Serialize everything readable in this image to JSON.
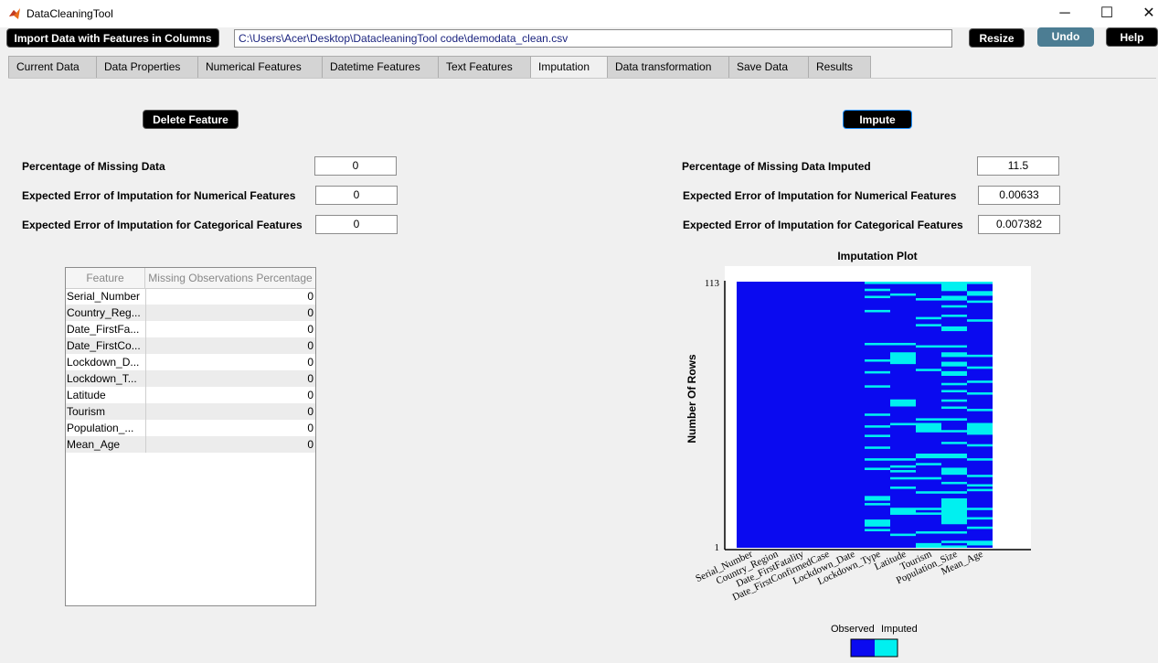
{
  "window": {
    "title": "DataCleaningTool",
    "minimize": "─",
    "maximize": "☐",
    "close": "✕"
  },
  "toolbar": {
    "import_label": "Import Data with Features in Columns",
    "path_value": "C:\\Users\\Acer\\Desktop\\DatacleaningTool code\\demodata_clean.csv",
    "resize_label": "Resize",
    "undo_label": "Undo",
    "help_label": "Help"
  },
  "tabs": [
    "Current Data",
    "Data Properties",
    "Numerical Features",
    "Datetime Features",
    "Text Features",
    "Imputation",
    "Data transformation",
    "Save Data",
    "Results"
  ],
  "active_tab": "Imputation",
  "left": {
    "delete_label": "Delete Feature",
    "missing_label": "Percentage of Missing Data",
    "missing_value": "0",
    "num_err_label": "Expected Error of Imputation for Numerical Features",
    "num_err_value": "0",
    "cat_err_label": "Expected Error of Imputation for Categorical Features",
    "cat_err_value": "0",
    "table": {
      "headers": [
        "Feature",
        "Missing Observations Percentage"
      ],
      "rows": [
        [
          "Serial_Number",
          "0"
        ],
        [
          "Country_Reg...",
          "0"
        ],
        [
          "Date_FirstFa...",
          "0"
        ],
        [
          "Date_FirstCo...",
          "0"
        ],
        [
          "Lockdown_D...",
          "0"
        ],
        [
          "Lockdown_T...",
          "0"
        ],
        [
          "Latitude",
          "0"
        ],
        [
          "Tourism",
          "0"
        ],
        [
          "Population_...",
          "0"
        ],
        [
          "Mean_Age",
          "0"
        ]
      ]
    }
  },
  "right": {
    "impute_label": "Impute",
    "imputed_label": "Percentage of Missing Data Imputed",
    "imputed_value": "11.5",
    "num_err_label": "Expected Error of Imputation for Numerical Features",
    "num_err_value": "0.00633",
    "cat_err_label": "Expected Error of Imputation for Categorical Features",
    "cat_err_value": "0.007382"
  },
  "chart_data": {
    "type": "heatmap",
    "title": "Imputation Plot",
    "ylabel": "Number Of Rows",
    "ylim": [
      1,
      113
    ],
    "ytick_labels": [
      "1",
      "113"
    ],
    "columns": [
      "Serial_Number",
      "Country_Region",
      "Date_FirstFatality",
      "Date_FirstConfirmedCase",
      "Lockdown_Date",
      "Lockdown_Type",
      "Latitude",
      "Tourism",
      "Population_Size",
      "Mean_Age"
    ],
    "colors": {
      "observed": "#0a0af0",
      "imputed": "#00f0f0",
      "background": "#ffffff"
    },
    "legend": [
      "Observed",
      "Imputed"
    ],
    "imputed_ranges": {
      "Serial_Number": [],
      "Country_Region": [],
      "Date_FirstFatality": [],
      "Date_FirstConfirmedCase": [],
      "Lockdown_Date": [],
      "Lockdown_Type": [
        [
          113,
          113
        ],
        [
          110,
          110
        ],
        [
          107,
          107
        ],
        [
          101,
          101
        ],
        [
          87,
          87
        ],
        [
          80,
          80
        ],
        [
          75,
          75
        ],
        [
          69,
          69
        ],
        [
          57,
          57
        ],
        [
          52,
          52
        ],
        [
          48,
          48
        ],
        [
          43,
          43
        ],
        [
          38,
          38
        ],
        [
          34,
          34
        ],
        [
          22,
          21
        ],
        [
          19,
          19
        ],
        [
          12,
          10
        ],
        [
          8,
          8
        ]
      ],
      "Latitude": [
        [
          113,
          113
        ],
        [
          108,
          108
        ],
        [
          87,
          87
        ],
        [
          83,
          79
        ],
        [
          63,
          61
        ],
        [
          53,
          53
        ],
        [
          38,
          38
        ],
        [
          35,
          35
        ],
        [
          33,
          33
        ],
        [
          30,
          30
        ],
        [
          26,
          26
        ],
        [
          17,
          15
        ],
        [
          6,
          6
        ]
      ],
      "Tourism": [
        [
          113,
          113
        ],
        [
          106,
          106
        ],
        [
          98,
          98
        ],
        [
          95,
          95
        ],
        [
          86,
          86
        ],
        [
          76,
          76
        ],
        [
          55,
          55
        ],
        [
          53,
          50
        ],
        [
          40,
          39
        ],
        [
          36,
          36
        ],
        [
          30,
          30
        ],
        [
          24,
          24
        ],
        [
          17,
          17
        ],
        [
          15,
          15
        ],
        [
          7,
          7
        ],
        [
          2,
          1
        ]
      ],
      "Population_Size": [
        [
          113,
          110
        ],
        [
          107,
          106
        ],
        [
          103,
          103
        ],
        [
          99,
          99
        ],
        [
          94,
          93
        ],
        [
          86,
          86
        ],
        [
          83,
          82
        ],
        [
          79,
          78
        ],
        [
          75,
          74
        ],
        [
          70,
          70
        ],
        [
          67,
          67
        ],
        [
          63,
          63
        ],
        [
          60,
          60
        ],
        [
          55,
          55
        ],
        [
          50,
          50
        ],
        [
          45,
          45
        ],
        [
          40,
          39
        ],
        [
          34,
          32
        ],
        [
          28,
          28
        ],
        [
          24,
          24
        ],
        [
          21,
          11
        ],
        [
          7,
          7
        ],
        [
          3,
          3
        ],
        [
          1,
          1
        ]
      ],
      "Mean_Age": [
        [
          113,
          113
        ],
        [
          109,
          108
        ],
        [
          105,
          105
        ],
        [
          97,
          97
        ],
        [
          82,
          82
        ],
        [
          77,
          77
        ],
        [
          71,
          71
        ],
        [
          66,
          66
        ],
        [
          59,
          59
        ],
        [
          53,
          49
        ],
        [
          44,
          44
        ],
        [
          38,
          38
        ],
        [
          31,
          31
        ],
        [
          27,
          27
        ],
        [
          25,
          25
        ],
        [
          17,
          17
        ],
        [
          13,
          13
        ],
        [
          9,
          9
        ],
        [
          3,
          2
        ]
      ]
    }
  }
}
